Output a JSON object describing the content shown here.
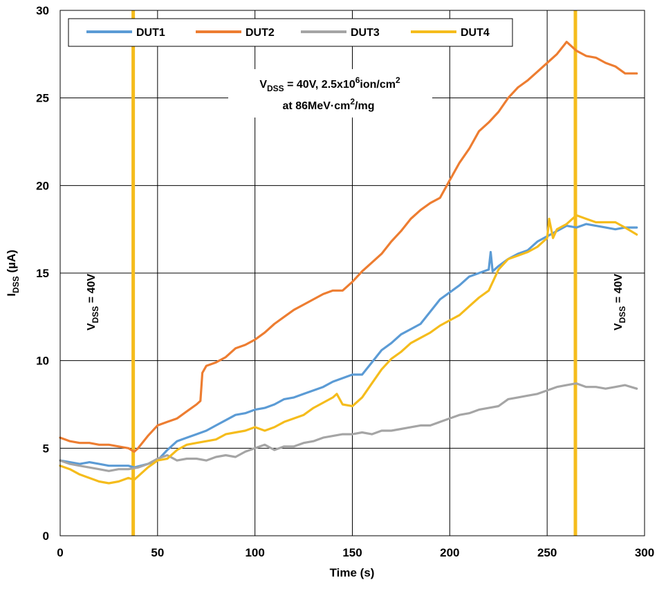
{
  "chart_data": {
    "type": "line",
    "xlabel": "Time (s)",
    "ylabel": {
      "main": "I",
      "sub": "DSS",
      "rest": " (µA)"
    },
    "xlim": [
      0,
      300
    ],
    "ylim": [
      0,
      30
    ],
    "xticks": [
      0,
      50,
      100,
      150,
      200,
      250,
      300
    ],
    "yticks": [
      0,
      5,
      10,
      15,
      20,
      25,
      30
    ],
    "grid": true,
    "legend_position": "top-left",
    "annotation": {
      "line1": {
        "a": "V",
        "b": "DSS",
        "c": " = 40V, 2.5x10",
        "d": "6",
        "e": "ion/cm",
        "f": "2"
      },
      "line2": {
        "a": "at 86MeV·cm",
        "b": "2",
        "c": "/mg"
      }
    },
    "vlines": [
      {
        "x": 37.5,
        "label": {
          "a": "V",
          "b": "DSS",
          "c": " = 40V"
        }
      },
      {
        "x": 264.5,
        "label": {
          "a": "V",
          "b": "DSS",
          "c": " = 40V"
        }
      }
    ],
    "vline_color": "#F5BC1C",
    "series": [
      {
        "name": "DUT1",
        "color": "#5B9BD5",
        "x": [
          0,
          5,
          10,
          15,
          20,
          25,
          30,
          35,
          38,
          45,
          50,
          55,
          60,
          65,
          70,
          75,
          80,
          85,
          90,
          95,
          100,
          105,
          110,
          115,
          120,
          125,
          130,
          135,
          140,
          145,
          150,
          155,
          160,
          165,
          170,
          175,
          180,
          185,
          190,
          195,
          200,
          205,
          210,
          215,
          220,
          221,
          222,
          225,
          230,
          235,
          240,
          245,
          250,
          255,
          260,
          265,
          270,
          275,
          280,
          285,
          290,
          296
        ],
        "y": [
          4.3,
          4.2,
          4.1,
          4.2,
          4.1,
          4.0,
          4.0,
          4.0,
          3.9,
          4.1,
          4.3,
          4.9,
          5.4,
          5.6,
          5.8,
          6.0,
          6.3,
          6.6,
          6.9,
          7.0,
          7.2,
          7.3,
          7.5,
          7.8,
          7.9,
          8.1,
          8.3,
          8.5,
          8.8,
          9.0,
          9.2,
          9.2,
          9.9,
          10.6,
          11.0,
          11.5,
          11.8,
          12.1,
          12.8,
          13.5,
          13.9,
          14.3,
          14.8,
          15.0,
          15.2,
          16.2,
          15.1,
          15.4,
          15.8,
          16.1,
          16.3,
          16.8,
          17.1,
          17.4,
          17.7,
          17.6,
          17.8,
          17.7,
          17.6,
          17.5,
          17.6,
          17.6
        ]
      },
      {
        "name": "DUT2",
        "color": "#ED7D31",
        "x": [
          0,
          5,
          10,
          15,
          20,
          25,
          30,
          35,
          38,
          40,
          45,
          50,
          55,
          60,
          65,
          70,
          72,
          73,
          75,
          80,
          85,
          90,
          95,
          100,
          105,
          110,
          115,
          120,
          125,
          130,
          135,
          140,
          145,
          150,
          155,
          160,
          165,
          170,
          175,
          180,
          185,
          190,
          195,
          200,
          205,
          210,
          215,
          220,
          225,
          230,
          235,
          240,
          245,
          250,
          255,
          260,
          262,
          265,
          270,
          275,
          280,
          285,
          290,
          296
        ],
        "y": [
          5.6,
          5.4,
          5.3,
          5.3,
          5.2,
          5.2,
          5.1,
          5.0,
          4.8,
          5.0,
          5.7,
          6.3,
          6.5,
          6.7,
          7.1,
          7.5,
          7.7,
          9.3,
          9.7,
          9.9,
          10.2,
          10.7,
          10.9,
          11.2,
          11.6,
          12.1,
          12.5,
          12.9,
          13.2,
          13.5,
          13.8,
          14.0,
          14.0,
          14.5,
          15.1,
          15.6,
          16.1,
          16.8,
          17.4,
          18.1,
          18.6,
          19.0,
          19.3,
          20.3,
          21.3,
          22.1,
          23.1,
          23.6,
          24.2,
          25.0,
          25.6,
          26.0,
          26.5,
          27.0,
          27.5,
          28.2,
          28.0,
          27.7,
          27.4,
          27.3,
          27.0,
          26.8,
          26.4,
          26.4
        ]
      },
      {
        "name": "DUT3",
        "color": "#A5A5A5",
        "x": [
          0,
          5,
          10,
          15,
          20,
          25,
          30,
          35,
          40,
          45,
          50,
          55,
          60,
          65,
          70,
          75,
          80,
          85,
          90,
          95,
          100,
          105,
          110,
          115,
          120,
          125,
          130,
          135,
          140,
          145,
          150,
          155,
          160,
          165,
          170,
          175,
          180,
          185,
          190,
          195,
          200,
          205,
          210,
          215,
          220,
          225,
          230,
          235,
          240,
          245,
          250,
          255,
          260,
          265,
          270,
          275,
          280,
          285,
          290,
          296
        ],
        "y": [
          4.3,
          4.1,
          4.0,
          3.9,
          3.8,
          3.7,
          3.8,
          3.8,
          3.9,
          4.1,
          4.4,
          4.6,
          4.3,
          4.4,
          4.4,
          4.3,
          4.5,
          4.6,
          4.5,
          4.8,
          5.0,
          5.2,
          4.9,
          5.1,
          5.1,
          5.3,
          5.4,
          5.6,
          5.7,
          5.8,
          5.8,
          5.9,
          5.8,
          6.0,
          6.0,
          6.1,
          6.2,
          6.3,
          6.3,
          6.5,
          6.7,
          6.9,
          7.0,
          7.2,
          7.3,
          7.4,
          7.8,
          7.9,
          8.0,
          8.1,
          8.3,
          8.5,
          8.6,
          8.7,
          8.5,
          8.5,
          8.4,
          8.5,
          8.6,
          8.4
        ]
      },
      {
        "name": "DUT4",
        "color": "#F5BC1C",
        "x": [
          0,
          5,
          10,
          15,
          20,
          25,
          30,
          35,
          38,
          40,
          45,
          50,
          55,
          60,
          65,
          70,
          75,
          80,
          85,
          90,
          95,
          100,
          105,
          110,
          115,
          120,
          125,
          130,
          135,
          140,
          142,
          145,
          150,
          155,
          160,
          165,
          170,
          175,
          180,
          185,
          190,
          195,
          200,
          205,
          210,
          215,
          220,
          225,
          230,
          235,
          240,
          245,
          250,
          251,
          253,
          255,
          260,
          265,
          270,
          275,
          280,
          285,
          290,
          296
        ],
        "y": [
          4.0,
          3.8,
          3.5,
          3.3,
          3.1,
          3.0,
          3.1,
          3.3,
          3.2,
          3.4,
          3.9,
          4.3,
          4.4,
          4.9,
          5.2,
          5.3,
          5.4,
          5.5,
          5.8,
          5.9,
          6.0,
          6.2,
          6.0,
          6.2,
          6.5,
          6.7,
          6.9,
          7.3,
          7.6,
          7.9,
          8.1,
          7.5,
          7.4,
          7.9,
          8.7,
          9.5,
          10.1,
          10.5,
          11.0,
          11.3,
          11.6,
          12.0,
          12.3,
          12.6,
          13.1,
          13.6,
          14.0,
          15.2,
          15.8,
          16.0,
          16.2,
          16.5,
          17.0,
          18.1,
          17.0,
          17.5,
          17.8,
          18.3,
          18.1,
          17.9,
          17.9,
          17.9,
          17.6,
          17.2
        ]
      }
    ]
  }
}
